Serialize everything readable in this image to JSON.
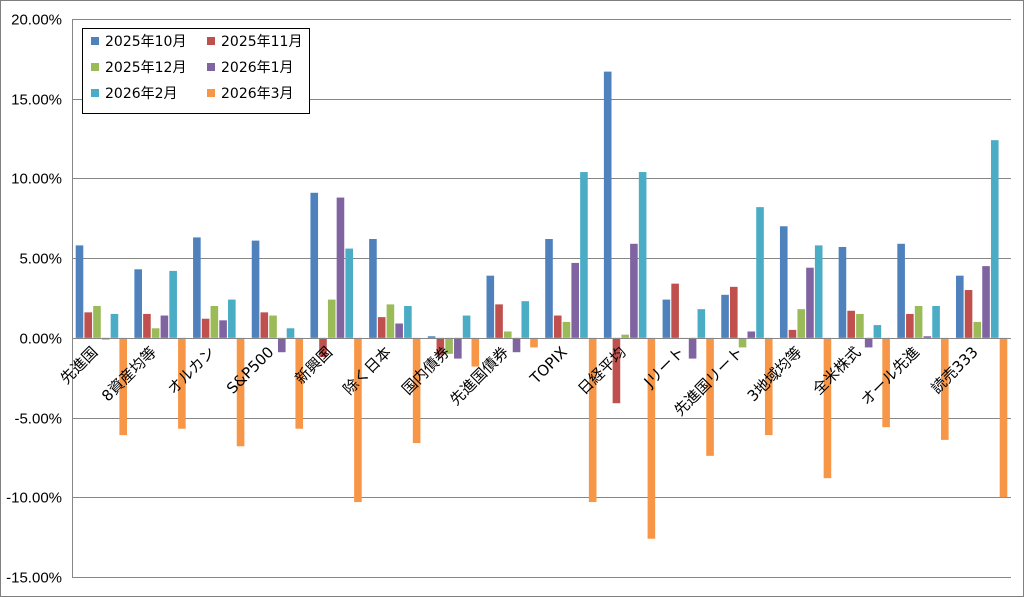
{
  "chart_data": {
    "type": "bar",
    "title": "",
    "xlabel": "",
    "ylabel": "",
    "ylim": [
      -0.15,
      0.2
    ],
    "y_ticks": [
      {
        "value": 0.2,
        "label": "20.00%"
      },
      {
        "value": 0.15,
        "label": "15.00%"
      },
      {
        "value": 0.1,
        "label": "10.00%"
      },
      {
        "value": 0.05,
        "label": "5.00%"
      },
      {
        "value": 0.0,
        "label": "0.00%"
      },
      {
        "value": -0.05,
        "label": "-5.00%"
      },
      {
        "value": -0.1,
        "label": "-10.00%"
      },
      {
        "value": -0.15,
        "label": "-15.00%"
      }
    ],
    "grid": true,
    "legend_position": "top-left",
    "categories": [
      "先進国",
      "8資産均等",
      "オルカン",
      "S&P500",
      "新興国",
      "除く日本",
      "国内債券",
      "先進国債券",
      "TOPIX",
      "日経平均",
      "Jリート",
      "先進国リート",
      "3地域均等",
      "全米株式",
      "オール先進",
      "読売333"
    ],
    "series": [
      {
        "name": "2025年10月",
        "color": "#4f81bd",
        "values": [
          0.058,
          0.043,
          0.063,
          0.061,
          0.091,
          0.062,
          0.001,
          0.039,
          0.062,
          0.167,
          0.024,
          0.027,
          0.07,
          0.057,
          0.059,
          0.039
        ]
      },
      {
        "name": "2025年11月",
        "color": "#c0504d",
        "values": [
          0.016,
          0.015,
          0.012,
          0.016,
          -0.012,
          0.013,
          -0.011,
          0.021,
          0.014,
          -0.041,
          0.034,
          0.032,
          0.005,
          0.017,
          0.015,
          0.03
        ]
      },
      {
        "name": "2025年12月",
        "color": "#9bbb59",
        "values": [
          0.02,
          0.006,
          0.02,
          0.014,
          0.024,
          0.021,
          -0.01,
          0.004,
          0.01,
          0.002,
          0.0,
          -0.006,
          0.018,
          0.015,
          0.02,
          0.01
        ]
      },
      {
        "name": "2026年1月",
        "color": "#8064a2",
        "values": [
          -0.001,
          0.014,
          0.011,
          -0.009,
          0.088,
          0.009,
          -0.013,
          -0.009,
          0.047,
          0.059,
          -0.013,
          0.004,
          0.044,
          -0.006,
          0.001,
          0.045
        ]
      },
      {
        "name": "2026年2月",
        "color": "#4bacc6",
        "values": [
          0.015,
          0.042,
          0.024,
          0.006,
          0.056,
          0.02,
          0.014,
          0.023,
          0.104,
          0.104,
          0.018,
          0.082,
          0.058,
          0.008,
          0.02,
          0.124
        ]
      },
      {
        "name": "2026年3月",
        "color": "#f79646",
        "values": [
          -0.061,
          -0.057,
          -0.068,
          -0.057,
          -0.103,
          -0.066,
          -0.018,
          -0.006,
          -0.103,
          -0.126,
          -0.074,
          -0.061,
          -0.088,
          -0.056,
          -0.064,
          -0.1
        ]
      }
    ]
  }
}
